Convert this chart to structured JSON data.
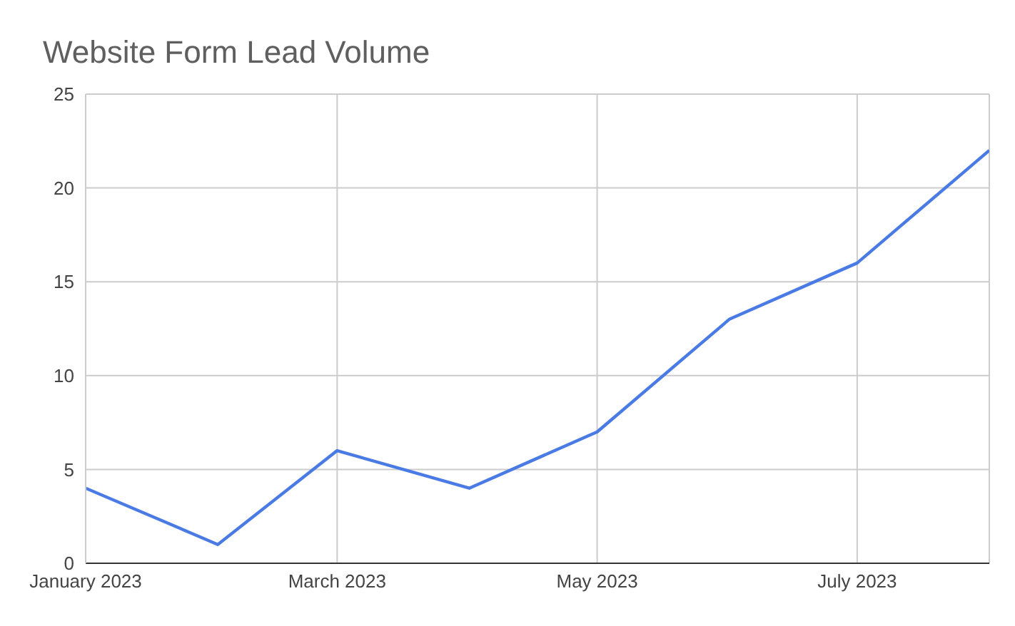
{
  "chart_data": {
    "type": "line",
    "title": "Website Form Lead Volume",
    "x": [
      "2023-01",
      "2023-02",
      "2023-03",
      "2023-04",
      "2023-05",
      "2023-06",
      "2023-07",
      "2023-08"
    ],
    "series": [
      {
        "color": "#4a7be4",
        "values": [
          4,
          1,
          6,
          4,
          7,
          13,
          16,
          22
        ]
      }
    ],
    "xlim": [
      "2023-01",
      "2023-08"
    ],
    "xticks": [
      {
        "value": "2023-01",
        "label": "January 2023"
      },
      {
        "value": "2023-03",
        "label": "March 2023"
      },
      {
        "value": "2023-05",
        "label": "May 2023"
      },
      {
        "value": "2023-07",
        "label": "July 2023"
      }
    ],
    "ylim": [
      0,
      25
    ],
    "yticks": [
      0,
      5,
      10,
      15,
      20,
      25
    ],
    "grid": true,
    "marker": "none",
    "line_style": "solid"
  }
}
